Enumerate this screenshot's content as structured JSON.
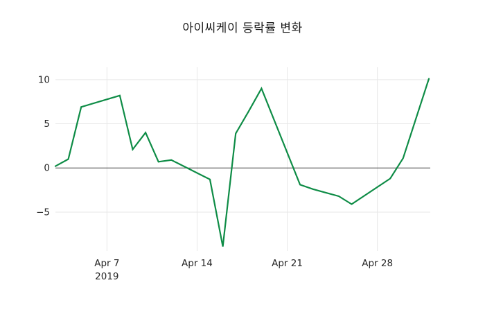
{
  "title": "아이씨케이 등락률 변화",
  "chart_data": {
    "type": "line",
    "title": "아이씨케이 등락률 변화",
    "grid": true,
    "zero_line": true,
    "legend": "none",
    "x_range_days": [
      0,
      29
    ],
    "ylim": [
      -9.4,
      11.4
    ],
    "series": [
      {
        "name": "등락률(%)",
        "color": "#0e8c46",
        "x_dates": [
          "2019-04-03",
          "2019-04-04",
          "2019-04-05",
          "2019-04-08",
          "2019-04-09",
          "2019-04-10",
          "2019-04-11",
          "2019-04-12",
          "2019-04-15",
          "2019-04-16",
          "2019-04-17",
          "2019-04-18",
          "2019-04-19",
          "2019-04-22",
          "2019-04-23",
          "2019-04-24",
          "2019-04-25",
          "2019-04-26",
          "2019-04-29",
          "2019-04-30",
          "2019-05-02"
        ],
        "x_day_offsets": [
          0,
          1,
          2,
          5,
          6,
          7,
          8,
          9,
          12,
          13,
          14,
          15,
          16,
          19,
          20,
          21,
          22,
          23,
          26,
          27,
          29
        ],
        "values": [
          0.2,
          1.0,
          6.9,
          8.2,
          2.1,
          4.0,
          0.7,
          0.9,
          -1.3,
          -8.9,
          3.9,
          6.4,
          9.0,
          -1.9,
          -2.4,
          -2.8,
          -3.2,
          -4.1,
          -1.2,
          1.1,
          10.1
        ]
      }
    ],
    "x_ticks": [
      {
        "label": "Apr 7",
        "sublabel": "2019",
        "day_offset": 4
      },
      {
        "label": "Apr 14",
        "sublabel": "",
        "day_offset": 11
      },
      {
        "label": "Apr 21",
        "sublabel": "",
        "day_offset": 18
      },
      {
        "label": "Apr 28",
        "sublabel": "",
        "day_offset": 25
      }
    ],
    "y_ticks": [
      {
        "label": "−5",
        "value": -5
      },
      {
        "label": "0",
        "value": 0
      },
      {
        "label": "5",
        "value": 5
      },
      {
        "label": "10",
        "value": 10
      }
    ],
    "colors": {
      "line": "#0e8c46",
      "grid": "#e7e7e7",
      "zero_line": "#404040",
      "tick_text": "#262626",
      "title_text": "#1a1a1a",
      "background": "#ffffff"
    }
  }
}
